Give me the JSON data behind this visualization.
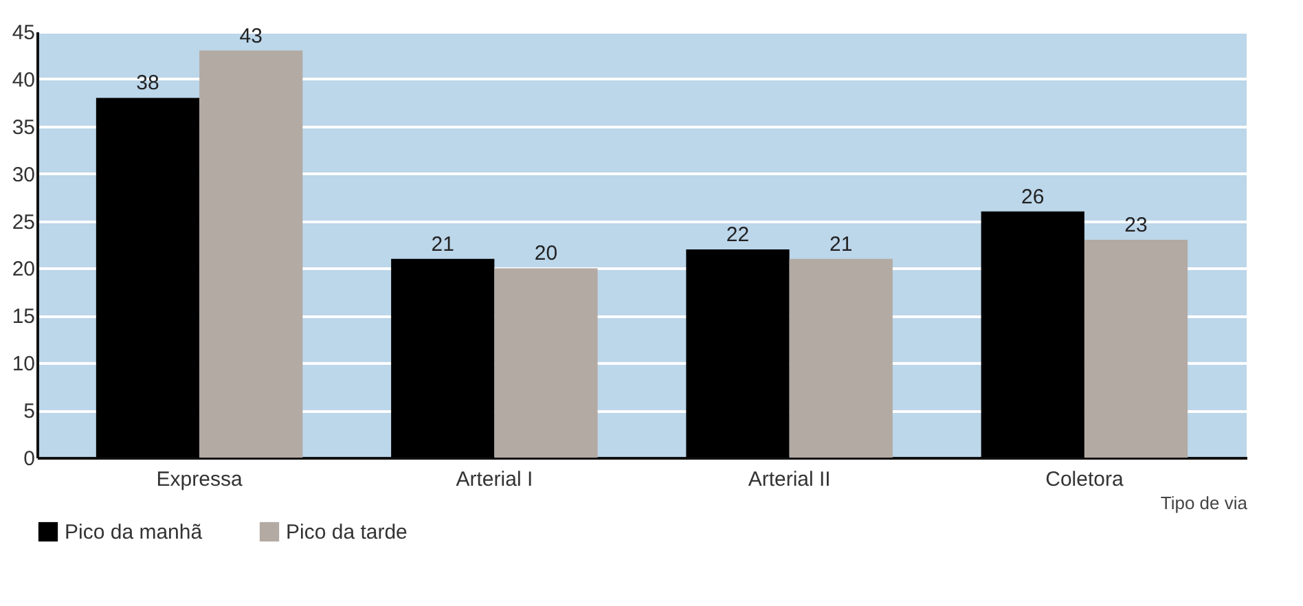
{
  "chart_data": {
    "type": "bar",
    "xlabel": "Tipo de via",
    "categories": [
      "Expressa",
      "Arterial I",
      "Arterial II",
      "Coletora"
    ],
    "series": [
      {
        "name": "Pico da manhã",
        "color": "#000000",
        "values": [
          38,
          21,
          22,
          26
        ]
      },
      {
        "name": "Pico da tarde",
        "color": "#b3aaa3",
        "values": [
          43,
          20,
          21,
          23
        ]
      }
    ],
    "ylim": [
      0,
      45
    ],
    "yticks": [
      0,
      5,
      10,
      15,
      20,
      25,
      30,
      35,
      40,
      45
    ],
    "grid": "y",
    "legend": "bottom left",
    "data_labels": true
  }
}
